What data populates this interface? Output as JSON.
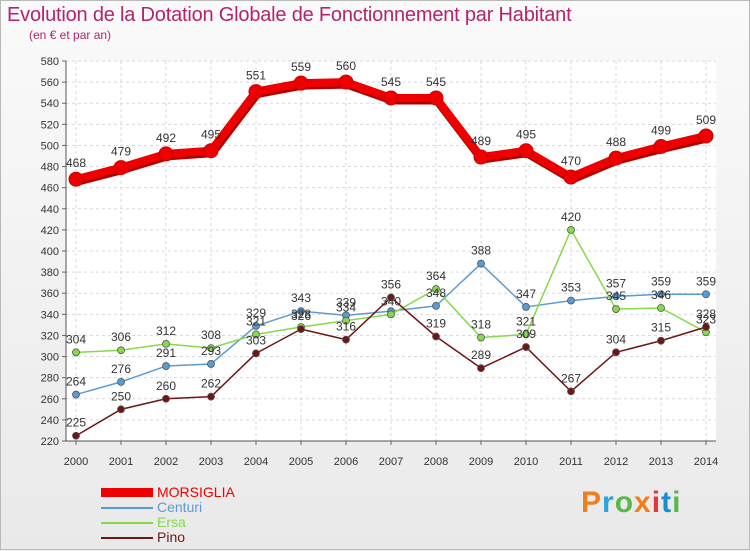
{
  "header": {
    "title": "Evolution de la Dotation Globale de Fonctionnement par Habitant",
    "subtitle": "(en € et par an)"
  },
  "logo": {
    "text": "Proxiti",
    "colors": [
      "#f07f1b",
      "#2aa3df",
      "#58b947",
      "#f07f1b",
      "#e2373b",
      "#1b8bd3",
      "#58b947"
    ]
  },
  "chart_data": {
    "type": "line",
    "title": "Evolution de la Dotation Globale de Fonctionnement par Habitant",
    "subtitle": "(en € et par an)",
    "x": [
      "2000",
      "2001",
      "2002",
      "2003",
      "2004",
      "2005",
      "2006",
      "2007",
      "2008",
      "2009",
      "2010",
      "2011",
      "2012",
      "2013",
      "2014"
    ],
    "ylim": [
      220,
      580
    ],
    "yticks": [
      220,
      240,
      260,
      280,
      300,
      320,
      340,
      360,
      380,
      400,
      420,
      440,
      460,
      480,
      500,
      520,
      540,
      560,
      580
    ],
    "grid": true,
    "legend_position": "bottom-left",
    "series": [
      {
        "name": "MORSIGLIA",
        "color": "#ee0000",
        "values": [
          468,
          479,
          492,
          495,
          551,
          559,
          560,
          545,
          545,
          489,
          495,
          470,
          488,
          499,
          509
        ],
        "labels": [
          "468",
          "479",
          "492",
          "495",
          "551",
          "559",
          "560",
          "545",
          "545",
          "489",
          "495",
          "470",
          "488",
          "499",
          "509"
        ]
      },
      {
        "name": "Centuri",
        "color": "#5b9bd5",
        "values": [
          264,
          276,
          291,
          293,
          329,
          343,
          339,
          343,
          348,
          388,
          347,
          353,
          357,
          359,
          359
        ],
        "labels": [
          "264",
          "276",
          "291",
          "293",
          "329",
          "343",
          "339",
          "",
          "348",
          "388",
          "347",
          "353",
          "357",
          "359",
          "359"
        ]
      },
      {
        "name": "Ersa",
        "color": "#86d94a",
        "values": [
          304,
          306,
          312,
          308,
          321,
          328,
          334,
          340,
          364,
          318,
          321,
          420,
          345,
          346,
          323
        ],
        "labels": [
          "304",
          "306",
          "312",
          "308",
          "321",
          "328",
          "334",
          "340",
          "364",
          "318",
          "321",
          "420",
          "345",
          "346",
          "323"
        ]
      },
      {
        "name": "Pino",
        "color": "#6e1616",
        "values": [
          225,
          250,
          260,
          262,
          303,
          326,
          316,
          356,
          319,
          289,
          309,
          267,
          304,
          315,
          328
        ],
        "labels": [
          "225",
          "250",
          "260",
          "262",
          "303",
          "326",
          "316",
          "356",
          "319",
          "289",
          "309",
          "267",
          "304",
          "315",
          "328"
        ]
      }
    ]
  }
}
